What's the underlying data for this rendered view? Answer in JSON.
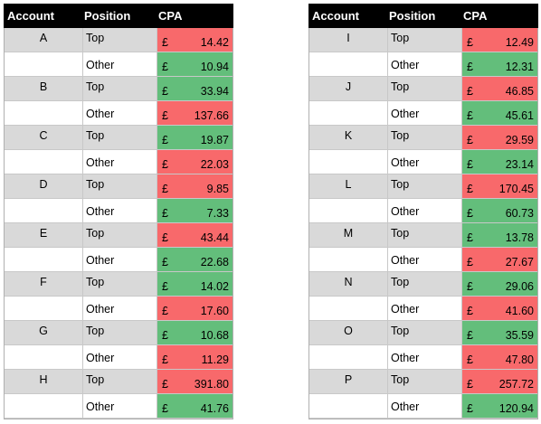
{
  "headers": {
    "account": "Account",
    "position": "Position",
    "cpa": "CPA"
  },
  "currency_symbol": "£",
  "colors": {
    "high_cpa": "#f8696b",
    "low_cpa": "#63be7b",
    "top_row_bg": "#d9d9d9",
    "header_bg": "#000000"
  },
  "left_table": [
    {
      "account": "A",
      "top": "14.42",
      "other": "10.94",
      "top_color": "red",
      "other_color": "green"
    },
    {
      "account": "B",
      "top": "33.94",
      "other": "137.66",
      "top_color": "green",
      "other_color": "red"
    },
    {
      "account": "C",
      "top": "19.87",
      "other": "22.03",
      "top_color": "green",
      "other_color": "red"
    },
    {
      "account": "D",
      "top": "9.85",
      "other": "7.33",
      "top_color": "red",
      "other_color": "green"
    },
    {
      "account": "E",
      "top": "43.44",
      "other": "22.68",
      "top_color": "red",
      "other_color": "green"
    },
    {
      "account": "F",
      "top": "14.02",
      "other": "17.60",
      "top_color": "green",
      "other_color": "red"
    },
    {
      "account": "G",
      "top": "10.68",
      "other": "11.29",
      "top_color": "green",
      "other_color": "red"
    },
    {
      "account": "H",
      "top": "391.80",
      "other": "41.76",
      "top_color": "red",
      "other_color": "green"
    }
  ],
  "right_table": [
    {
      "account": "I",
      "top": "12.49",
      "other": "12.31",
      "top_color": "red",
      "other_color": "green"
    },
    {
      "account": "J",
      "top": "46.85",
      "other": "45.61",
      "top_color": "red",
      "other_color": "green"
    },
    {
      "account": "K",
      "top": "29.59",
      "other": "23.14",
      "top_color": "red",
      "other_color": "green"
    },
    {
      "account": "L",
      "top": "170.45",
      "other": "60.73",
      "top_color": "red",
      "other_color": "green"
    },
    {
      "account": "M",
      "top": "13.78",
      "other": "27.67",
      "top_color": "green",
      "other_color": "red"
    },
    {
      "account": "N",
      "top": "29.06",
      "other": "41.60",
      "top_color": "green",
      "other_color": "red"
    },
    {
      "account": "O",
      "top": "35.59",
      "other": "47.80",
      "top_color": "green",
      "other_color": "red"
    },
    {
      "account": "P",
      "top": "257.72",
      "other": "120.94",
      "top_color": "red",
      "other_color": "green"
    }
  ],
  "position_labels": {
    "top": "Top",
    "other": "Other"
  }
}
